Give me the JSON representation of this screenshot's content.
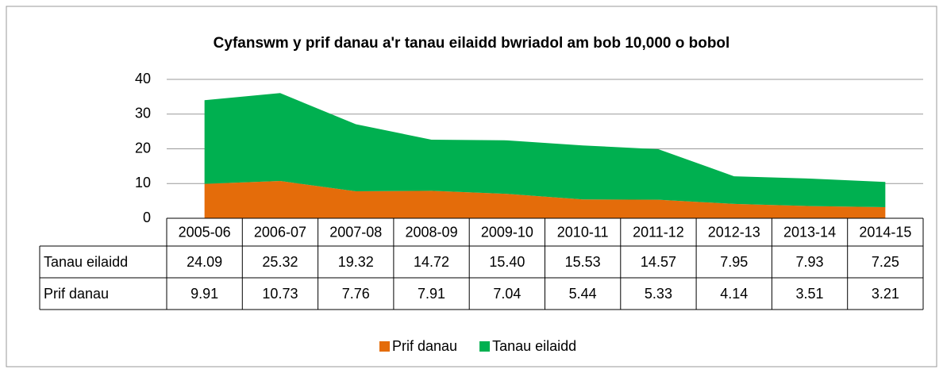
{
  "chart_data": {
    "type": "area",
    "stacked": true,
    "title": "Cyfanswm y prif danau a'r tanau eilaidd bwriadol am bob 10,000 o bobol",
    "categories": [
      "2005-06",
      "2006-07",
      "2007-08",
      "2008-09",
      "2009-10",
      "2010-11",
      "2011-12",
      "2012-13",
      "2013-14",
      "2014-15"
    ],
    "series": [
      {
        "name": "Prif danau",
        "color": "#e46c0a",
        "values": [
          9.91,
          10.73,
          7.76,
          7.91,
          7.04,
          5.44,
          5.33,
          4.14,
          3.51,
          3.21
        ],
        "value_labels": [
          "9.91",
          "10.73",
          "7.76",
          "7.91",
          "7.04",
          "5.44",
          "5.33",
          "4.14",
          "3.51",
          "3.21"
        ]
      },
      {
        "name": "Tanau eilaidd",
        "color": "#00b050",
        "values": [
          24.09,
          25.32,
          19.32,
          14.72,
          15.4,
          15.53,
          14.57,
          7.95,
          7.93,
          7.25
        ],
        "value_labels": [
          "24.09",
          "25.32",
          "19.32",
          "14.72",
          "15.40",
          "15.53",
          "14.57",
          "7.95",
          "7.93",
          "7.25"
        ]
      }
    ],
    "ylim": [
      0,
      40
    ],
    "yticks": [
      0,
      10,
      20,
      30,
      40
    ],
    "grid": true,
    "legend": "bottom",
    "data_table": true
  }
}
